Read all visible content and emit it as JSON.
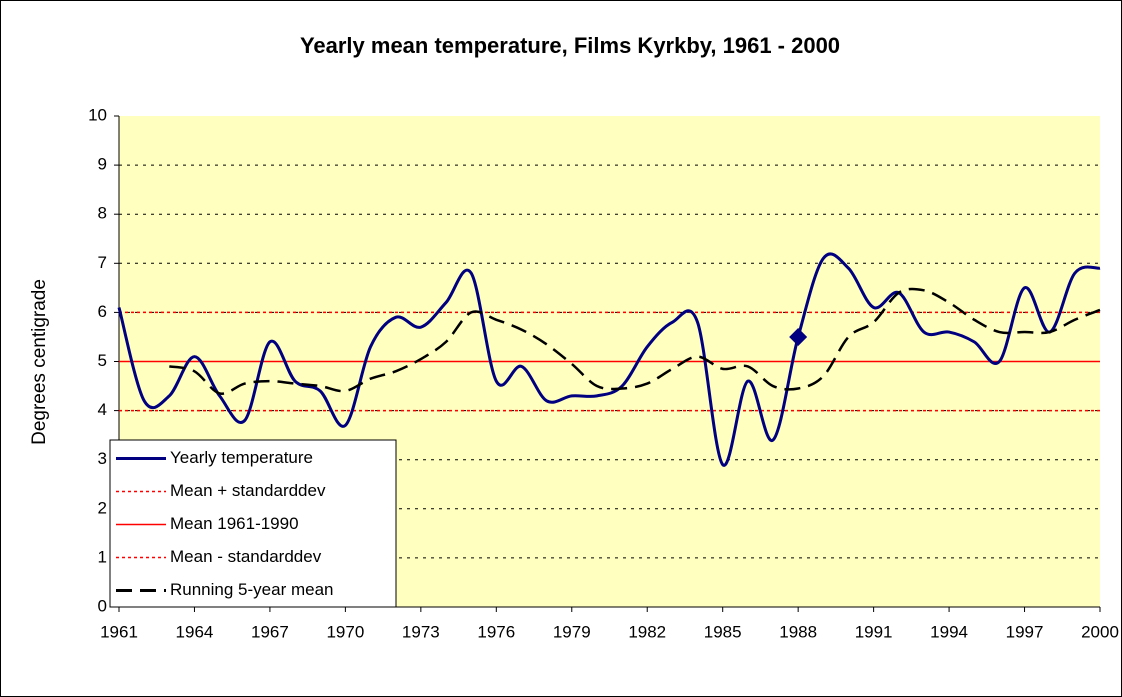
{
  "chart_data": {
    "type": "line",
    "title": "Yearly mean temperature, Films Kyrkby, 1961 - 2000",
    "y_label": "Degrees centigrade",
    "x": [
      1961,
      1962,
      1963,
      1964,
      1965,
      1966,
      1967,
      1968,
      1969,
      1970,
      1971,
      1972,
      1973,
      1974,
      1975,
      1976,
      1977,
      1978,
      1979,
      1980,
      1981,
      1982,
      1983,
      1984,
      1985,
      1986,
      1987,
      1988,
      1989,
      1990,
      1991,
      1992,
      1993,
      1994,
      1995,
      1996,
      1997,
      1998,
      1999,
      2000
    ],
    "series": [
      {
        "name": "Yearly temperature",
        "color": "#000080",
        "style": "solid",
        "values": [
          6.1,
          4.2,
          4.3,
          5.1,
          4.3,
          3.8,
          5.4,
          4.6,
          4.4,
          3.7,
          5.3,
          5.9,
          5.7,
          6.2,
          6.8,
          4.6,
          4.9,
          4.2,
          4.3,
          4.3,
          4.5,
          5.3,
          5.8,
          5.8,
          2.9,
          4.6,
          3.4,
          5.5,
          7.1,
          6.9,
          6.1,
          6.4,
          5.6,
          5.6,
          5.4,
          5.0,
          6.5,
          5.6,
          6.8,
          6.9
        ]
      },
      {
        "name": "Running 5-year mean",
        "color": "#000000",
        "style": "dash",
        "values": [
          null,
          null,
          4.9,
          4.8,
          4.35,
          4.55,
          4.6,
          4.55,
          4.5,
          4.4,
          4.65,
          4.8,
          5.05,
          5.4,
          6.0,
          5.85,
          5.65,
          5.35,
          4.95,
          4.5,
          4.45,
          4.55,
          4.85,
          5.1,
          4.85,
          4.9,
          4.5,
          4.45,
          4.7,
          5.5,
          5.8,
          6.4,
          6.45,
          6.2,
          5.85,
          5.6,
          5.6,
          5.6,
          5.85,
          6.05
        ]
      }
    ],
    "hlines": [
      {
        "name": "Mean + standarddev",
        "value": 6,
        "color": "#ff0000",
        "style": "dot"
      },
      {
        "name": "Mean 1961-1990",
        "value": 5,
        "color": "#ff0000",
        "style": "solid"
      },
      {
        "name": "Mean - standarddev",
        "value": 4,
        "color": "#ff0000",
        "style": "dot"
      }
    ],
    "highlight_x": 1988,
    "xlim": [
      1961,
      2000
    ],
    "xticks": [
      1961,
      1964,
      1967,
      1970,
      1973,
      1976,
      1979,
      1982,
      1985,
      1988,
      1991,
      1994,
      1997,
      2000
    ],
    "ylim": [
      0,
      10
    ],
    "yticks": [
      0,
      1,
      2,
      3,
      4,
      5,
      6,
      7,
      8,
      9,
      10
    ],
    "grid": true,
    "legend": "lower left"
  }
}
